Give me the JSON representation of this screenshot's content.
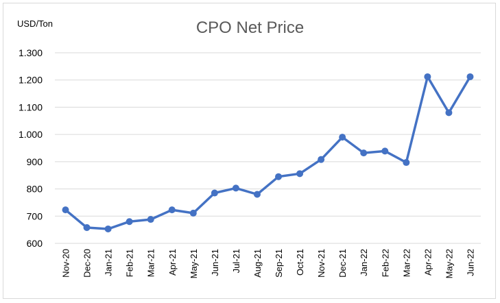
{
  "chart_data": {
    "type": "line",
    "title": "CPO Net Price",
    "unit_label": "USD/Ton",
    "xlabel": "",
    "ylabel": "",
    "ylim": [
      600,
      1300
    ],
    "yticks": [
      {
        "value": 600,
        "label": "600"
      },
      {
        "value": 700,
        "label": "700"
      },
      {
        "value": 800,
        "label": "800"
      },
      {
        "value": 900,
        "label": "900"
      },
      {
        "value": 1000,
        "label": "1.000"
      },
      {
        "value": 1100,
        "label": "1.100"
      },
      {
        "value": 1200,
        "label": "1.200"
      },
      {
        "value": 1300,
        "label": "1.300"
      }
    ],
    "grid": true,
    "legend": "none",
    "categories": [
      "Nov-20",
      "Dec-20",
      "Jan-21",
      "Feb-21",
      "Mar-21",
      "Apr-21",
      "May-21",
      "Jun-21",
      "Jul-21",
      "Aug-21",
      "Sep-21",
      "Oct-21",
      "Nov-21",
      "Dec-21",
      "Jan-22",
      "Feb-22",
      "Mar-22",
      "Apr-22",
      "May-22",
      "Jun-22"
    ],
    "series": [
      {
        "color": "#4472c4",
        "values": [
          723,
          658,
          653,
          680,
          688,
          723,
          711,
          785,
          803,
          780,
          845,
          856,
          908,
          990,
          932,
          939,
          897,
          1212,
          1080,
          1212
        ]
      }
    ]
  }
}
